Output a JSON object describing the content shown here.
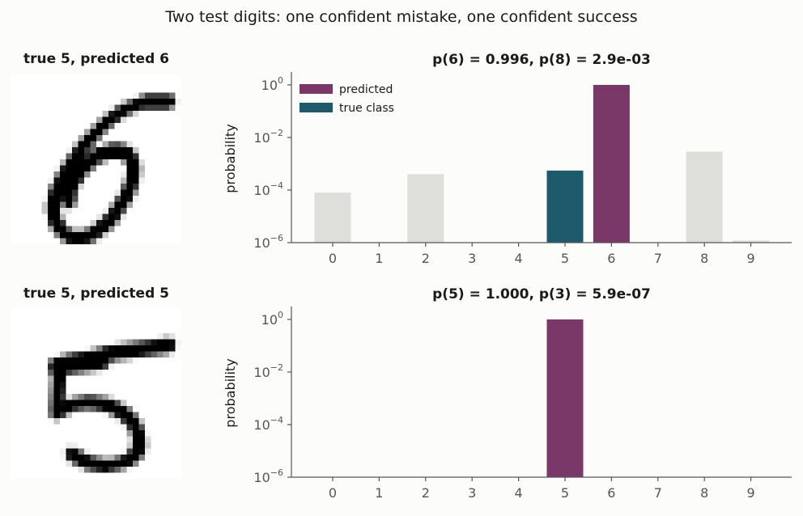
{
  "figure": {
    "suptitle": "Two test digits: one confident mistake, one confident success"
  },
  "colors": {
    "predicted": "#7a3868",
    "true_class": "#1d5a6c",
    "other": "#dededa",
    "axis": "#555555"
  },
  "panels": [
    {
      "image_title": "true 5, predicted 6",
      "image_icon": "handwritten-digit-image"
    },
    {
      "image_title": "true 5, predicted 5",
      "image_icon": "handwritten-digit-image"
    }
  ],
  "chart_data": [
    {
      "type": "bar",
      "title": "p(6) = 0.996,   p(8) = 2.9e-03",
      "ylabel": "probability",
      "yscale": "log",
      "ylim": [
        1e-06,
        2.5
      ],
      "yticks": [
        1e-06,
        0.0001,
        0.01,
        1
      ],
      "ytick_exponents": [
        "-6",
        "-4",
        "-2",
        "0"
      ],
      "categories": [
        "0",
        "1",
        "2",
        "3",
        "4",
        "5",
        "6",
        "7",
        "8",
        "9"
      ],
      "values": [
        8e-05,
        1e-06,
        0.0004,
        1e-06,
        1e-06,
        0.00055,
        0.996,
        1e-06,
        0.0029,
        1.2e-06
      ],
      "predicted_index": 6,
      "true_index": 5,
      "legend": {
        "position": "top-left",
        "entries": [
          {
            "label": "predicted",
            "color": "#7a3868"
          },
          {
            "label": "true class",
            "color": "#1d5a6c"
          }
        ]
      }
    },
    {
      "type": "bar",
      "title": "p(5) = 1.000,   p(3) = 5.9e-07",
      "ylabel": "probability",
      "yscale": "log",
      "ylim": [
        1e-06,
        2.5
      ],
      "yticks": [
        1e-06,
        0.0001,
        0.01,
        1
      ],
      "ytick_exponents": [
        "-6",
        "-4",
        "-2",
        "0"
      ],
      "categories": [
        "0",
        "1",
        "2",
        "3",
        "4",
        "5",
        "6",
        "7",
        "8",
        "9"
      ],
      "values": [
        1e-07,
        1e-07,
        1e-07,
        5.9e-07,
        1e-07,
        1.0,
        1e-07,
        1e-07,
        1e-07,
        1e-07
      ],
      "predicted_index": 5,
      "true_index": 5
    }
  ]
}
